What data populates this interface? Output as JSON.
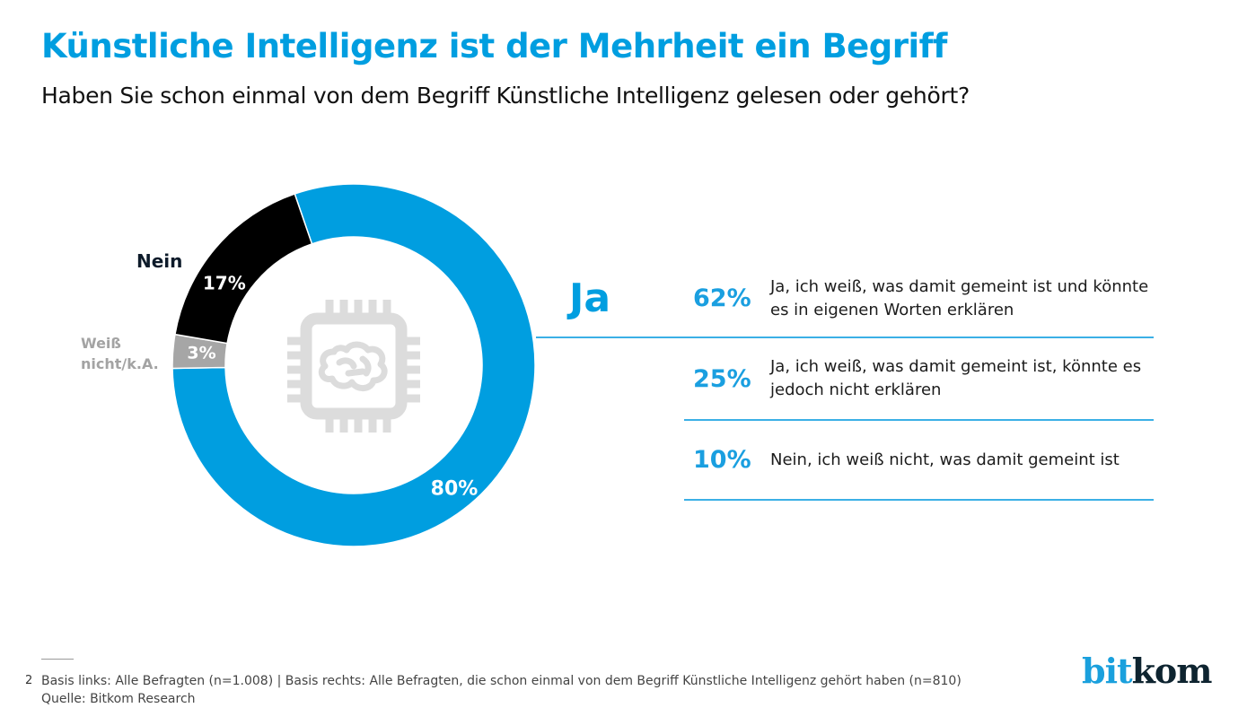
{
  "header": {
    "title": "Künstliche Intelligenz ist der Mehrheit ein Begriff",
    "subtitle": "Haben Sie schon einmal von dem Begriff Künstliche Intelligenz gelesen oder gehört?"
  },
  "colors": {
    "accent": "#009ee0",
    "ja": "#009ee0",
    "nein": "#000000",
    "weiss_nicht": "#a6a6a6",
    "icon": "#dcdcdc",
    "logo_bit": "#1aa0dd",
    "logo_kom": "#0e2430"
  },
  "chart_data": [
    {
      "type": "pie",
      "variant": "donut",
      "title": "Haben Sie schon einmal von dem Begriff Künstliche Intelligenz gelesen oder gehört?",
      "center_icon": "chip-brain-icon",
      "series": [
        {
          "name": "Ja",
          "value": 80,
          "label": "80%",
          "color": "#009ee0"
        },
        {
          "name": "Weiß nicht/k.A.",
          "value": 3,
          "label": "3%",
          "color": "#a6a6a6"
        },
        {
          "name": "Nein",
          "value": 17,
          "label": "17%",
          "color": "#000000"
        }
      ],
      "unit": "%",
      "base": "Alle Befragten (n=1.008)"
    },
    {
      "type": "table",
      "title": "Ja",
      "base": "Alle Befragten, die schon einmal von dem Begriff Künstliche Intelligenz gehört haben (n=810)",
      "rows": [
        {
          "value": 62,
          "label": "62%",
          "text": "Ja, ich weiß, was damit gemeint ist und könnte es in eigenen Worten erklären"
        },
        {
          "value": 25,
          "label": "25%",
          "text": "Ja, ich weiß, was damit gemeint ist, könnte es jedoch nicht erklären"
        },
        {
          "value": 10,
          "label": "10%",
          "text": "Nein, ich weiß nicht, was damit gemeint ist"
        }
      ]
    }
  ],
  "labels": {
    "ja": "Ja",
    "nein": "Nein",
    "weiss_line1": "Weiß",
    "weiss_line2": "nicht/k.A."
  },
  "footer": {
    "page_number": "2",
    "basis": "Basis links: Alle Befragten (n=1.008) | Basis rechts: Alle Befragten, die schon einmal von dem Begriff Künstliche Intelligenz gehört haben (n=810)",
    "source": "Quelle: Bitkom Research"
  },
  "logo": {
    "part1": "bit",
    "part2": "kom"
  }
}
